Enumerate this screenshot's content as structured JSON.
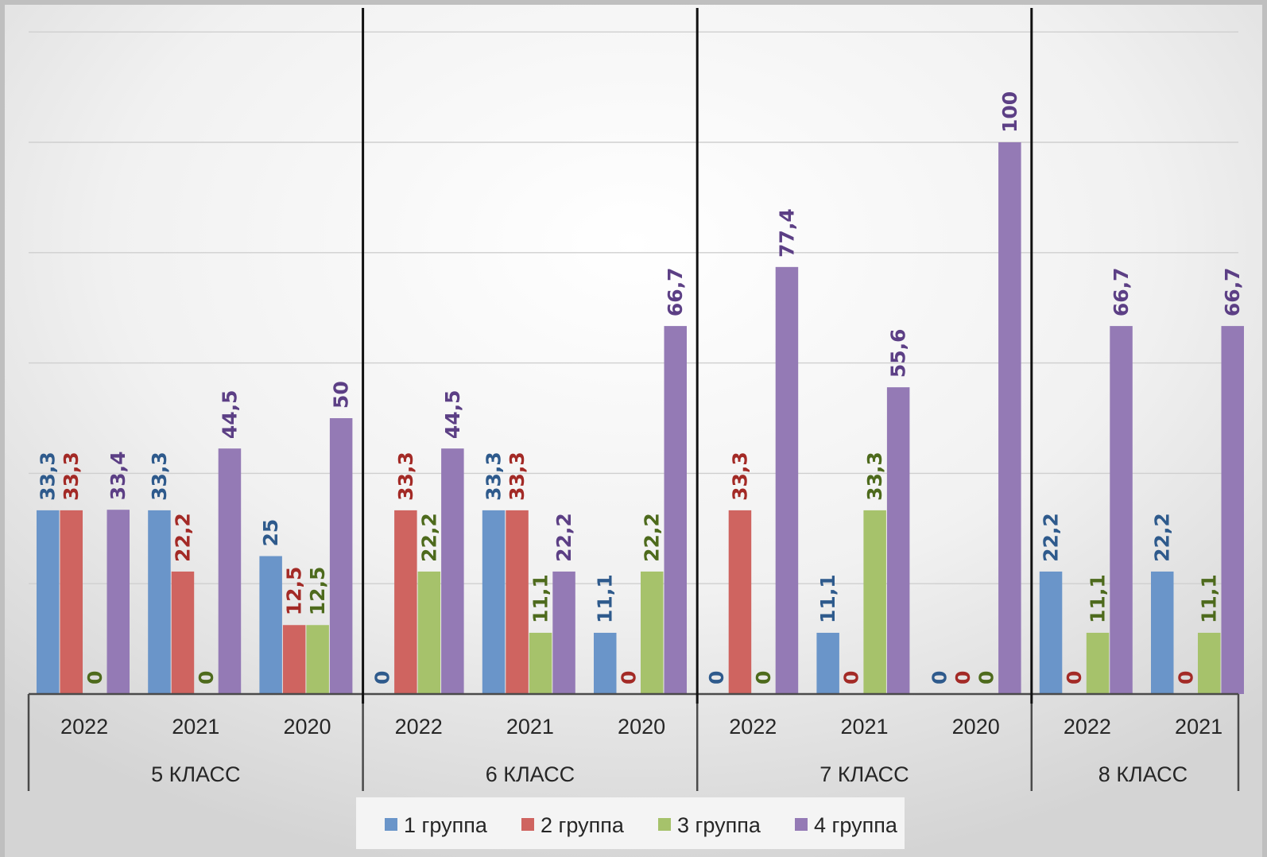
{
  "chart_data": {
    "type": "bar",
    "ylim": [
      0,
      100
    ],
    "grid": true,
    "legend_position": "bottom",
    "groups": [
      {
        "label": "5 КЛАСС",
        "categories": [
          {
            "label": "2022",
            "values": [
              33.3,
              33.3,
              0,
              33.4
            ],
            "labels": [
              "33,3",
              "33,3",
              "0",
              "33,4"
            ]
          },
          {
            "label": "2021",
            "values": [
              33.3,
              22.2,
              0,
              44.5
            ],
            "labels": [
              "33,3",
              "22,2",
              "0",
              "44,5"
            ]
          },
          {
            "label": "2020",
            "values": [
              25,
              12.5,
              12.5,
              50
            ],
            "labels": [
              "25",
              "12,5",
              "12,5",
              "50"
            ]
          }
        ]
      },
      {
        "label": "6 КЛАСС",
        "categories": [
          {
            "label": "2022",
            "values": [
              0,
              33.3,
              22.2,
              44.5
            ],
            "labels": [
              "0",
              "33,3",
              "22,2",
              "44,5"
            ]
          },
          {
            "label": "2021",
            "values": [
              33.3,
              33.3,
              11.1,
              22.2
            ],
            "labels": [
              "33,3",
              "33,3",
              "11,1",
              "22,2"
            ]
          },
          {
            "label": "2020",
            "values": [
              11.1,
              0,
              22.2,
              66.7
            ],
            "labels": [
              "11,1",
              "0",
              "22,2",
              "66,7"
            ]
          }
        ]
      },
      {
        "label": "7 КЛАСС",
        "categories": [
          {
            "label": "2022",
            "values": [
              0,
              33.3,
              0,
              77.4
            ],
            "labels": [
              "0",
              "33,3",
              "0",
              "77,4"
            ]
          },
          {
            "label": "2021",
            "values": [
              11.1,
              0,
              33.3,
              55.6
            ],
            "labels": [
              "11,1",
              "0",
              "33,3",
              "55,6"
            ]
          },
          {
            "label": "2020",
            "values": [
              0,
              0,
              0,
              100
            ],
            "labels": [
              "0",
              "0",
              "0",
              "100"
            ]
          }
        ]
      },
      {
        "label": "8 КЛАСС",
        "categories": [
          {
            "label": "2022",
            "values": [
              22.2,
              0,
              11.1,
              66.7
            ],
            "labels": [
              "22,2",
              "0",
              "11,1",
              "66,7"
            ]
          },
          {
            "label": "2021",
            "values": [
              22.2,
              0,
              11.1,
              66.7
            ],
            "labels": [
              "22,2",
              "0",
              "11,1",
              "66,7"
            ]
          }
        ]
      }
    ],
    "series": [
      {
        "name": "1 группа",
        "color": "#6a95c9",
        "label_color": "#2e5a8c"
      },
      {
        "name": "2 группа",
        "color": "#cf6460",
        "label_color": "#a32a26"
      },
      {
        "name": "3 группа",
        "color": "#a6c26b",
        "label_color": "#4d6a1c"
      },
      {
        "name": "4 группа",
        "color": "#947ab5",
        "label_color": "#5c3f85"
      }
    ]
  }
}
